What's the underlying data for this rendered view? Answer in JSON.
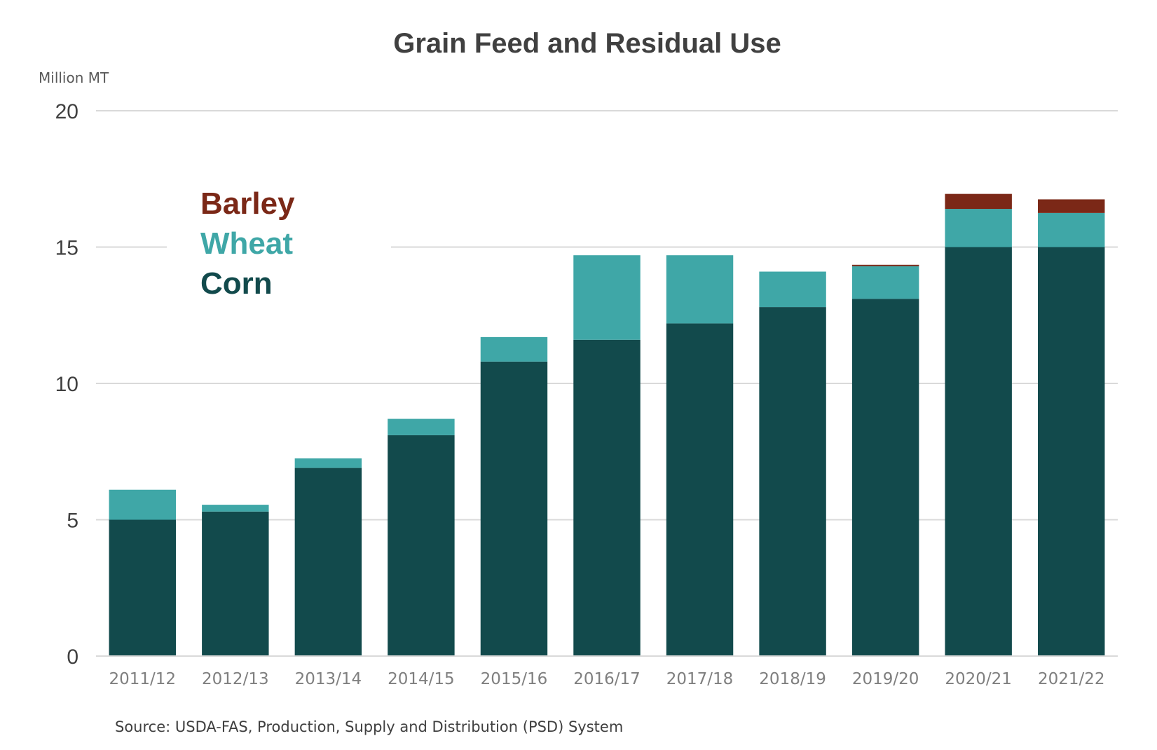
{
  "chart_data": {
    "type": "bar",
    "stacked": true,
    "title": "Grain Feed and Residual Use",
    "unit_label": "Million MT",
    "categories": [
      "2011/12",
      "2012/13",
      "2013/14",
      "2014/15",
      "2015/16",
      "2016/17",
      "2017/18",
      "2018/19",
      "2019/20",
      "2020/21",
      "2021/22"
    ],
    "series": [
      {
        "name": "Corn",
        "color": "#124a4c",
        "values": [
          5.0,
          5.3,
          6.9,
          8.1,
          10.8,
          11.6,
          12.2,
          12.8,
          13.1,
          15.0,
          15.0
        ]
      },
      {
        "name": "Wheat",
        "color": "#3fa7a7",
        "values": [
          1.1,
          0.25,
          0.35,
          0.6,
          0.9,
          3.1,
          2.5,
          1.3,
          1.2,
          1.4,
          1.25
        ]
      },
      {
        "name": "Barley",
        "color": "#7b2817",
        "values": [
          0,
          0,
          0,
          0,
          0,
          0,
          0,
          0,
          0.05,
          0.55,
          0.5
        ]
      }
    ],
    "legend_order": [
      "Barley",
      "Wheat",
      "Corn"
    ],
    "ylim": [
      0,
      20
    ],
    "yticks": [
      0,
      5,
      10,
      15,
      20
    ],
    "grid": true,
    "legend_position": "top-left",
    "source": "Source: USDA-FAS, Production, Supply and Distribution (PSD) System"
  }
}
